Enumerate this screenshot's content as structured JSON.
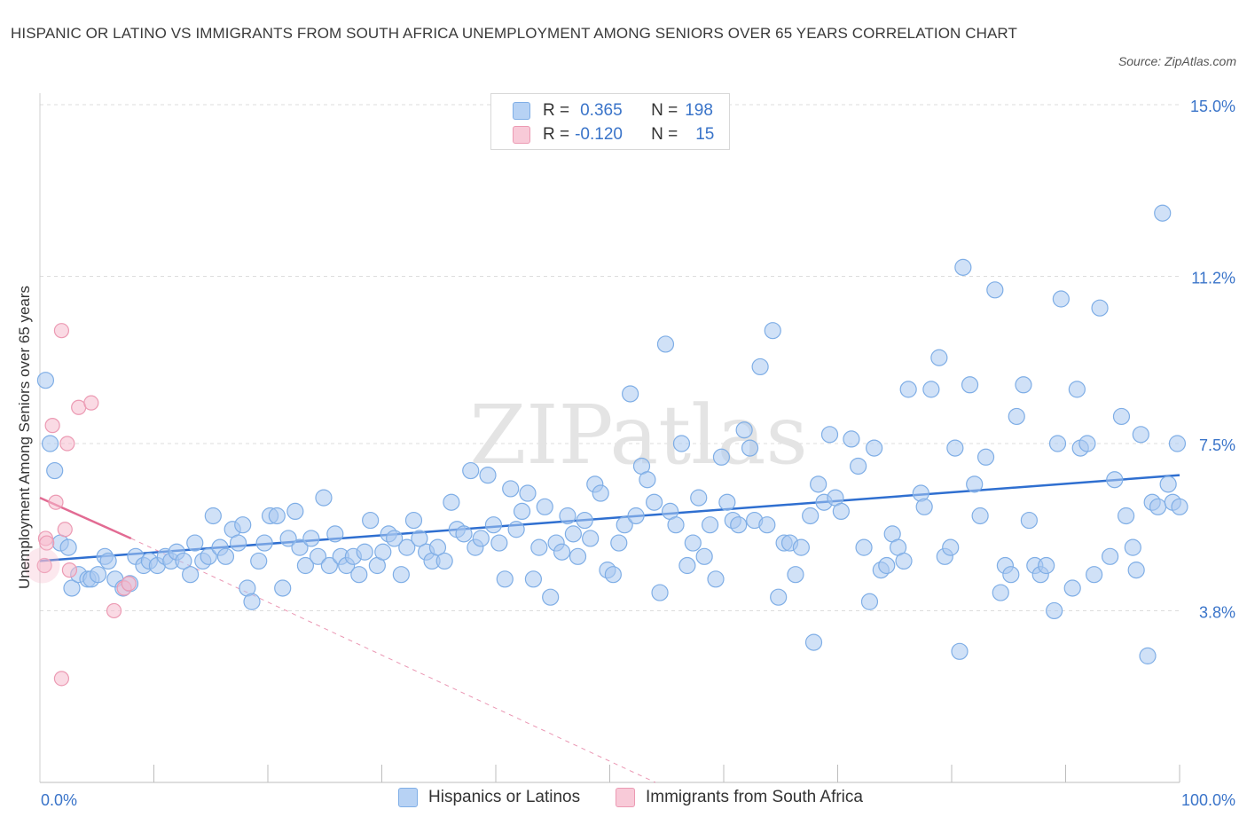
{
  "title": "HISPANIC OR LATINO VS IMMIGRANTS FROM SOUTH AFRICA UNEMPLOYMENT AMONG SENIORS OVER 65 YEARS CORRELATION CHART",
  "source": "Source: ZipAtlas.com",
  "watermark": "ZIPatlas",
  "legend": {
    "rows": [
      {
        "r_label": "R =",
        "r_value": "0.365",
        "n_label": "N =",
        "n_value": "198"
      },
      {
        "r_label": "R =",
        "r_value": "-0.120",
        "n_label": "N =",
        "n_value": "15"
      }
    ]
  },
  "colors": {
    "blue_fill": "#a9c8f0",
    "blue_stroke": "#7faee6",
    "blue_line": "#2f6fd0",
    "pink_fill": "#f5bccd",
    "pink_stroke": "#ec9ab3",
    "pink_line": "#e26b93",
    "axis_text": "#3a74c9",
    "grid": "#dddddd"
  },
  "chart_data": {
    "type": "scatter",
    "title": "HISPANIC OR LATINO VS IMMIGRANTS FROM SOUTH AFRICA UNEMPLOYMENT AMONG SENIORS OVER 65 YEARS CORRELATION CHART",
    "xlabel": "",
    "ylabel": "Unemployment Among Seniors over 65 years",
    "xlim": [
      0,
      100
    ],
    "ylim": [
      0,
      15
    ],
    "x_tick_labels": [
      "0.0%",
      "100.0%"
    ],
    "y_ticks": [
      3.8,
      7.5,
      11.2,
      15.0
    ],
    "y_tick_labels": [
      "3.8%",
      "7.5%",
      "11.2%",
      "15.0%"
    ],
    "grid": true,
    "legend_position": "top-center",
    "series": [
      {
        "name": "Hispanics or Latinos",
        "r": 0.365,
        "n": 198,
        "trend": {
          "x": [
            0,
            100
          ],
          "y": [
            4.9,
            6.8
          ]
        },
        "points": [
          [
            0.5,
            8.9
          ],
          [
            0.9,
            7.5
          ],
          [
            1.3,
            6.9
          ],
          [
            1.8,
            5.3
          ],
          [
            2.5,
            5.2
          ],
          [
            2.8,
            4.3
          ],
          [
            3.4,
            4.6
          ],
          [
            4.2,
            4.5
          ],
          [
            4.5,
            4.5
          ],
          [
            5.1,
            4.6
          ],
          [
            5.7,
            5.0
          ],
          [
            6.0,
            4.9
          ],
          [
            6.6,
            4.5
          ],
          [
            7.3,
            4.3
          ],
          [
            7.9,
            4.4
          ],
          [
            8.4,
            5.0
          ],
          [
            9.1,
            4.8
          ],
          [
            9.6,
            4.9
          ],
          [
            10.3,
            4.8
          ],
          [
            11.0,
            5.0
          ],
          [
            11.5,
            4.9
          ],
          [
            12.0,
            5.1
          ],
          [
            12.6,
            4.9
          ],
          [
            13.2,
            4.6
          ],
          [
            13.6,
            5.3
          ],
          [
            14.3,
            4.9
          ],
          [
            14.8,
            5.0
          ],
          [
            15.2,
            5.9
          ],
          [
            15.8,
            5.2
          ],
          [
            16.3,
            5.0
          ],
          [
            16.9,
            5.6
          ],
          [
            17.4,
            5.3
          ],
          [
            17.8,
            5.7
          ],
          [
            18.2,
            4.3
          ],
          [
            18.6,
            4.0
          ],
          [
            19.2,
            4.9
          ],
          [
            19.7,
            5.3
          ],
          [
            20.2,
            5.9
          ],
          [
            20.8,
            5.9
          ],
          [
            21.3,
            4.3
          ],
          [
            21.8,
            5.4
          ],
          [
            22.4,
            6.0
          ],
          [
            22.8,
            5.2
          ],
          [
            23.3,
            4.8
          ],
          [
            23.8,
            5.4
          ],
          [
            24.4,
            5.0
          ],
          [
            24.9,
            6.3
          ],
          [
            25.4,
            4.8
          ],
          [
            25.9,
            5.5
          ],
          [
            26.4,
            5.0
          ],
          [
            26.9,
            4.8
          ],
          [
            27.5,
            5.0
          ],
          [
            28.0,
            4.6
          ],
          [
            28.5,
            5.1
          ],
          [
            29.0,
            5.8
          ],
          [
            29.6,
            4.8
          ],
          [
            30.1,
            5.1
          ],
          [
            30.6,
            5.5
          ],
          [
            31.1,
            5.4
          ],
          [
            31.7,
            4.6
          ],
          [
            32.2,
            5.2
          ],
          [
            32.8,
            5.8
          ],
          [
            33.3,
            5.4
          ],
          [
            33.9,
            5.1
          ],
          [
            34.4,
            4.9
          ],
          [
            34.9,
            5.2
          ],
          [
            35.5,
            4.9
          ],
          [
            36.1,
            6.2
          ],
          [
            36.6,
            5.6
          ],
          [
            37.2,
            5.5
          ],
          [
            37.8,
            6.9
          ],
          [
            38.2,
            5.2
          ],
          [
            38.7,
            5.4
          ],
          [
            39.3,
            6.8
          ],
          [
            39.8,
            5.7
          ],
          [
            40.3,
            5.3
          ],
          [
            40.8,
            4.5
          ],
          [
            41.3,
            6.5
          ],
          [
            41.8,
            5.6
          ],
          [
            42.3,
            6.0
          ],
          [
            42.8,
            6.4
          ],
          [
            43.3,
            4.5
          ],
          [
            43.8,
            5.2
          ],
          [
            44.3,
            6.1
          ],
          [
            44.8,
            4.1
          ],
          [
            45.3,
            5.3
          ],
          [
            45.8,
            5.1
          ],
          [
            46.3,
            5.9
          ],
          [
            46.8,
            5.5
          ],
          [
            47.2,
            5.0
          ],
          [
            47.8,
            5.8
          ],
          [
            48.3,
            5.4
          ],
          [
            48.7,
            6.6
          ],
          [
            49.2,
            6.4
          ],
          [
            49.8,
            4.7
          ],
          [
            50.3,
            4.6
          ],
          [
            50.8,
            5.3
          ],
          [
            51.3,
            5.7
          ],
          [
            51.8,
            8.6
          ],
          [
            52.3,
            5.9
          ],
          [
            52.8,
            7.0
          ],
          [
            53.3,
            6.7
          ],
          [
            53.9,
            6.2
          ],
          [
            54.4,
            4.2
          ],
          [
            54.9,
            9.7
          ],
          [
            55.3,
            6.0
          ],
          [
            55.8,
            5.7
          ],
          [
            56.3,
            7.5
          ],
          [
            56.8,
            4.8
          ],
          [
            57.3,
            5.3
          ],
          [
            57.8,
            6.3
          ],
          [
            58.3,
            5.0
          ],
          [
            58.8,
            5.7
          ],
          [
            59.3,
            4.5
          ],
          [
            59.8,
            7.2
          ],
          [
            60.3,
            6.2
          ],
          [
            60.8,
            5.8
          ],
          [
            61.3,
            5.7
          ],
          [
            61.8,
            7.8
          ],
          [
            62.3,
            7.4
          ],
          [
            62.7,
            5.8
          ],
          [
            63.2,
            9.2
          ],
          [
            63.8,
            5.7
          ],
          [
            64.3,
            10.0
          ],
          [
            64.8,
            4.1
          ],
          [
            65.3,
            5.3
          ],
          [
            65.8,
            5.3
          ],
          [
            66.3,
            4.6
          ],
          [
            66.8,
            5.2
          ],
          [
            67.6,
            5.9
          ],
          [
            67.9,
            3.1
          ],
          [
            68.3,
            6.6
          ],
          [
            68.8,
            6.2
          ],
          [
            69.3,
            7.7
          ],
          [
            69.8,
            6.3
          ],
          [
            70.3,
            6.0
          ],
          [
            71.2,
            7.6
          ],
          [
            71.8,
            7.0
          ],
          [
            72.3,
            5.2
          ],
          [
            72.8,
            4.0
          ],
          [
            73.2,
            7.4
          ],
          [
            73.8,
            4.7
          ],
          [
            74.3,
            4.8
          ],
          [
            74.8,
            5.5
          ],
          [
            75.3,
            5.2
          ],
          [
            75.8,
            4.9
          ],
          [
            76.2,
            8.7
          ],
          [
            77.3,
            6.4
          ],
          [
            77.6,
            6.1
          ],
          [
            78.2,
            8.7
          ],
          [
            78.9,
            9.4
          ],
          [
            79.4,
            5.0
          ],
          [
            79.9,
            5.2
          ],
          [
            80.3,
            7.4
          ],
          [
            80.7,
            2.9
          ],
          [
            81.0,
            11.4
          ],
          [
            81.6,
            8.8
          ],
          [
            82.0,
            6.6
          ],
          [
            82.5,
            5.9
          ],
          [
            83.0,
            7.2
          ],
          [
            83.8,
            10.9
          ],
          [
            84.3,
            4.2
          ],
          [
            84.7,
            4.8
          ],
          [
            85.2,
            4.6
          ],
          [
            85.7,
            8.1
          ],
          [
            86.3,
            8.8
          ],
          [
            86.8,
            5.8
          ],
          [
            87.3,
            4.8
          ],
          [
            87.8,
            4.6
          ],
          [
            88.3,
            4.8
          ],
          [
            89.0,
            3.8
          ],
          [
            89.3,
            7.5
          ],
          [
            89.6,
            10.7
          ],
          [
            90.6,
            4.3
          ],
          [
            91.0,
            8.7
          ],
          [
            91.3,
            7.4
          ],
          [
            91.9,
            7.5
          ],
          [
            92.5,
            4.6
          ],
          [
            93.0,
            10.5
          ],
          [
            93.9,
            5.0
          ],
          [
            94.3,
            6.7
          ],
          [
            94.9,
            8.1
          ],
          [
            95.3,
            5.9
          ],
          [
            95.9,
            5.2
          ],
          [
            96.2,
            4.7
          ],
          [
            96.6,
            7.7
          ],
          [
            97.2,
            2.8
          ],
          [
            97.6,
            6.2
          ],
          [
            98.1,
            6.1
          ],
          [
            98.5,
            12.6
          ],
          [
            99.0,
            6.6
          ],
          [
            99.4,
            6.2
          ],
          [
            99.8,
            7.5
          ],
          [
            100.0,
            6.1
          ]
        ]
      },
      {
        "name": "Immigrants from South Africa",
        "r": -0.12,
        "n": 15,
        "trend": {
          "x": [
            0,
            8
          ],
          "y": [
            6.3,
            5.4
          ]
        },
        "trend_dashed_extension": {
          "x": [
            8,
            54
          ],
          "y": [
            5.4,
            0
          ]
        },
        "points": [
          [
            0.4,
            4.8
          ],
          [
            0.5,
            5.4
          ],
          [
            0.6,
            5.3
          ],
          [
            1.1,
            7.9
          ],
          [
            1.4,
            6.2
          ],
          [
            1.9,
            10.0
          ],
          [
            2.2,
            5.6
          ],
          [
            2.4,
            7.5
          ],
          [
            2.6,
            4.7
          ],
          [
            3.4,
            8.3
          ],
          [
            4.5,
            8.4
          ],
          [
            6.5,
            3.8
          ],
          [
            7.4,
            4.3
          ],
          [
            1.9,
            2.3
          ],
          [
            7.8,
            4.4
          ]
        ]
      }
    ]
  },
  "bottom_legend": [
    {
      "label": "Hispanics or Latinos"
    },
    {
      "label": "Immigrants from South Africa"
    }
  ]
}
